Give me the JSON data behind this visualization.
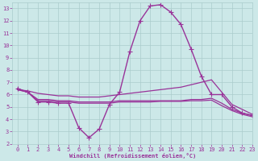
{
  "background_color": "#cce8e8",
  "grid_color": "#aacccc",
  "line_color": "#993399",
  "xlabel": "Windchill (Refroidissement éolien,°C)",
  "xlim": [
    -0.5,
    23
  ],
  "ylim": [
    2,
    13.5
  ],
  "xticks": [
    0,
    1,
    2,
    3,
    4,
    5,
    6,
    7,
    8,
    9,
    10,
    11,
    12,
    13,
    14,
    15,
    16,
    17,
    18,
    19,
    20,
    21,
    22,
    23
  ],
  "yticks": [
    2,
    3,
    4,
    5,
    6,
    7,
    8,
    9,
    10,
    11,
    12,
    13
  ],
  "series": [
    {
      "x": [
        0,
        1,
        2,
        3,
        4,
        5,
        6,
        7,
        8,
        9,
        10,
        11,
        12,
        13,
        14,
        15,
        16,
        17,
        18,
        19,
        20,
        21,
        22,
        23
      ],
      "y": [
        6.5,
        6.2,
        5.4,
        5.4,
        5.3,
        5.3,
        3.3,
        2.5,
        3.2,
        5.2,
        6.2,
        9.5,
        12.0,
        13.2,
        13.3,
        12.7,
        11.7,
        9.7,
        7.5,
        6.0,
        6.0,
        5.0,
        4.5,
        4.3
      ],
      "marker": "+",
      "linewidth": 1.0,
      "markersize": 4
    },
    {
      "x": [
        0,
        1,
        2,
        3,
        4,
        5,
        6,
        7,
        8,
        9,
        10,
        11,
        12,
        13,
        14,
        15,
        16,
        17,
        18,
        19,
        20,
        21,
        22,
        23
      ],
      "y": [
        6.4,
        6.3,
        6.1,
        6.0,
        5.9,
        5.9,
        5.8,
        5.8,
        5.8,
        5.9,
        6.0,
        6.1,
        6.2,
        6.3,
        6.4,
        6.5,
        6.6,
        6.8,
        7.0,
        7.2,
        6.2,
        5.2,
        4.8,
        4.4
      ],
      "marker": null,
      "linewidth": 0.9,
      "markersize": 0
    },
    {
      "x": [
        0,
        1,
        2,
        3,
        4,
        5,
        6,
        7,
        8,
        9,
        10,
        11,
        12,
        13,
        14,
        15,
        16,
        17,
        18,
        19,
        20,
        21,
        22,
        23
      ],
      "y": [
        6.4,
        6.2,
        5.6,
        5.6,
        5.5,
        5.5,
        5.4,
        5.4,
        5.4,
        5.4,
        5.5,
        5.5,
        5.5,
        5.5,
        5.5,
        5.5,
        5.5,
        5.6,
        5.6,
        5.7,
        5.3,
        4.8,
        4.5,
        4.3
      ],
      "marker": null,
      "linewidth": 0.9,
      "markersize": 0
    },
    {
      "x": [
        0,
        1,
        2,
        3,
        4,
        5,
        6,
        7,
        8,
        9,
        10,
        11,
        12,
        13,
        14,
        15,
        16,
        17,
        18,
        19,
        20,
        21,
        22,
        23
      ],
      "y": [
        6.4,
        6.2,
        5.5,
        5.5,
        5.4,
        5.4,
        5.3,
        5.3,
        5.3,
        5.3,
        5.4,
        5.4,
        5.4,
        5.4,
        5.45,
        5.45,
        5.45,
        5.5,
        5.5,
        5.55,
        5.1,
        4.7,
        4.4,
        4.2
      ],
      "marker": null,
      "linewidth": 0.9,
      "markersize": 0
    }
  ]
}
